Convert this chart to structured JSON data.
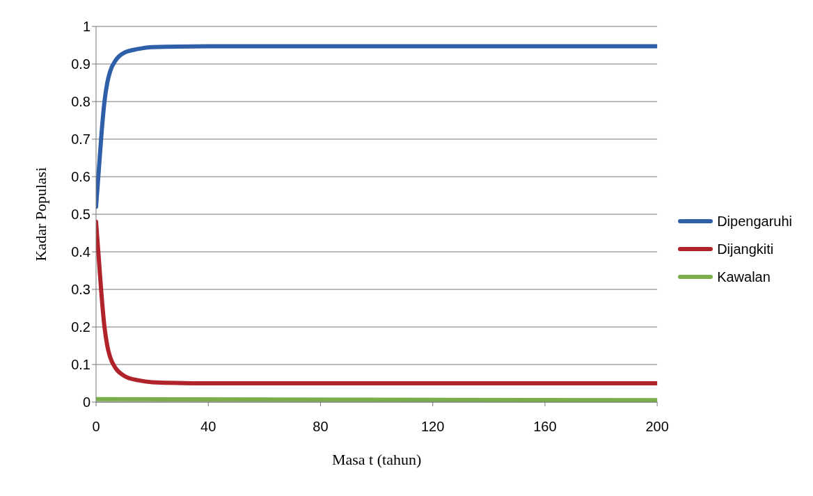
{
  "chart_data": {
    "type": "line",
    "xlabel": "Masa t (tahun)",
    "ylabel": "Kadar Populasi",
    "xlim": [
      0,
      200
    ],
    "xticks": [
      0,
      40,
      80,
      120,
      160,
      200
    ],
    "ylim": [
      0,
      1
    ],
    "yticks": [
      0,
      0.1,
      0.2,
      0.3,
      0.4,
      0.5,
      0.6,
      0.7,
      0.8,
      0.9,
      1
    ],
    "grid": "y",
    "legend": "right",
    "marker": "none",
    "line_style": "solid",
    "series": [
      {
        "name": "Dipengaruhi",
        "color": "#2f5fa8",
        "x": [
          0,
          1,
          2,
          3,
          4,
          5,
          7,
          10,
          15,
          20,
          40,
          200
        ],
        "values": [
          0.52,
          0.62,
          0.72,
          0.8,
          0.85,
          0.88,
          0.91,
          0.93,
          0.94,
          0.945,
          0.947,
          0.947
        ]
      },
      {
        "name": "Dijangkiti",
        "color": "#b0232a",
        "x": [
          0,
          1,
          2,
          3,
          4,
          5,
          7,
          10,
          15,
          20,
          40,
          200
        ],
        "values": [
          0.48,
          0.38,
          0.28,
          0.2,
          0.15,
          0.12,
          0.09,
          0.07,
          0.058,
          0.053,
          0.05,
          0.05
        ]
      },
      {
        "name": "Kawalan",
        "color": "#7aae4a",
        "x": [
          0,
          200
        ],
        "values": [
          0.008,
          0.005
        ]
      }
    ]
  }
}
